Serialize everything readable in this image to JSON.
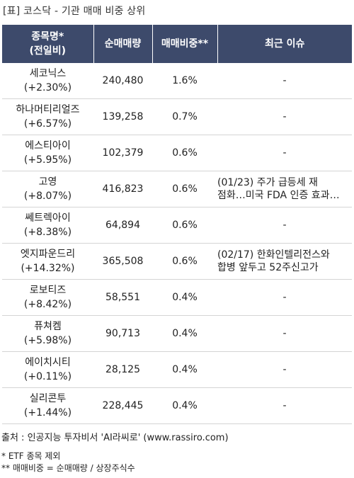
{
  "title": "[표] 코스닥 - 기관 매매 비중 상위",
  "headers": {
    "name_line1": "종목명*",
    "name_line2": "(전일비)",
    "volume": "순매매량",
    "ratio": "매매비중**",
    "issue": "최근 이슈"
  },
  "rows": [
    {
      "name": "세코닉스",
      "change": "(+2.30%)",
      "volume": "240,480",
      "ratio": "1.6%",
      "issue_line1": "-",
      "issue_line2": ""
    },
    {
      "name": "하나머티리얼즈",
      "change": "(+6.57%)",
      "volume": "139,258",
      "ratio": "0.7%",
      "issue_line1": "-",
      "issue_line2": ""
    },
    {
      "name": "에스티아이",
      "change": "(+5.95%)",
      "volume": "102,379",
      "ratio": "0.6%",
      "issue_line1": "-",
      "issue_line2": ""
    },
    {
      "name": "고영",
      "change": "(+8.07%)",
      "volume": "416,823",
      "ratio": "0.6%",
      "issue_line1": "(01/23) 주가 급등세 재",
      "issue_line2": "점화…미국 FDA 인증 효과 …"
    },
    {
      "name": "쎄트렉아이",
      "change": "(+8.38%)",
      "volume": "64,894",
      "ratio": "0.6%",
      "issue_line1": "-",
      "issue_line2": ""
    },
    {
      "name": "엣지파운드리",
      "change": "(+14.32%)",
      "volume": "365,508",
      "ratio": "0.6%",
      "issue_line1": "(02/17) 한화인텔리전스와",
      "issue_line2": "합병 앞두고 52주신고가"
    },
    {
      "name": "로보티즈",
      "change": "(+8.42%)",
      "volume": "58,551",
      "ratio": "0.4%",
      "issue_line1": "-",
      "issue_line2": ""
    },
    {
      "name": "퓨쳐켐",
      "change": "(+5.98%)",
      "volume": "90,713",
      "ratio": "0.4%",
      "issue_line1": "-",
      "issue_line2": ""
    },
    {
      "name": "에이치시티",
      "change": "(+0.11%)",
      "volume": "28,125",
      "ratio": "0.4%",
      "issue_line1": "-",
      "issue_line2": ""
    },
    {
      "name": "실리콘투",
      "change": "(+1.44%)",
      "volume": "228,445",
      "ratio": "0.4%",
      "issue_line1": "-",
      "issue_line2": ""
    }
  ],
  "source": "출처 : 인공지능 투자비서 'AI라씨로' (www.rassiro.com)",
  "note1": "* ETF 종목 제외",
  "note2": "** 매매비중 = 순매매량 / 상장주식수",
  "colors": {
    "header_bg": "#3d4a6b",
    "ratio_text": "#e0161b"
  }
}
